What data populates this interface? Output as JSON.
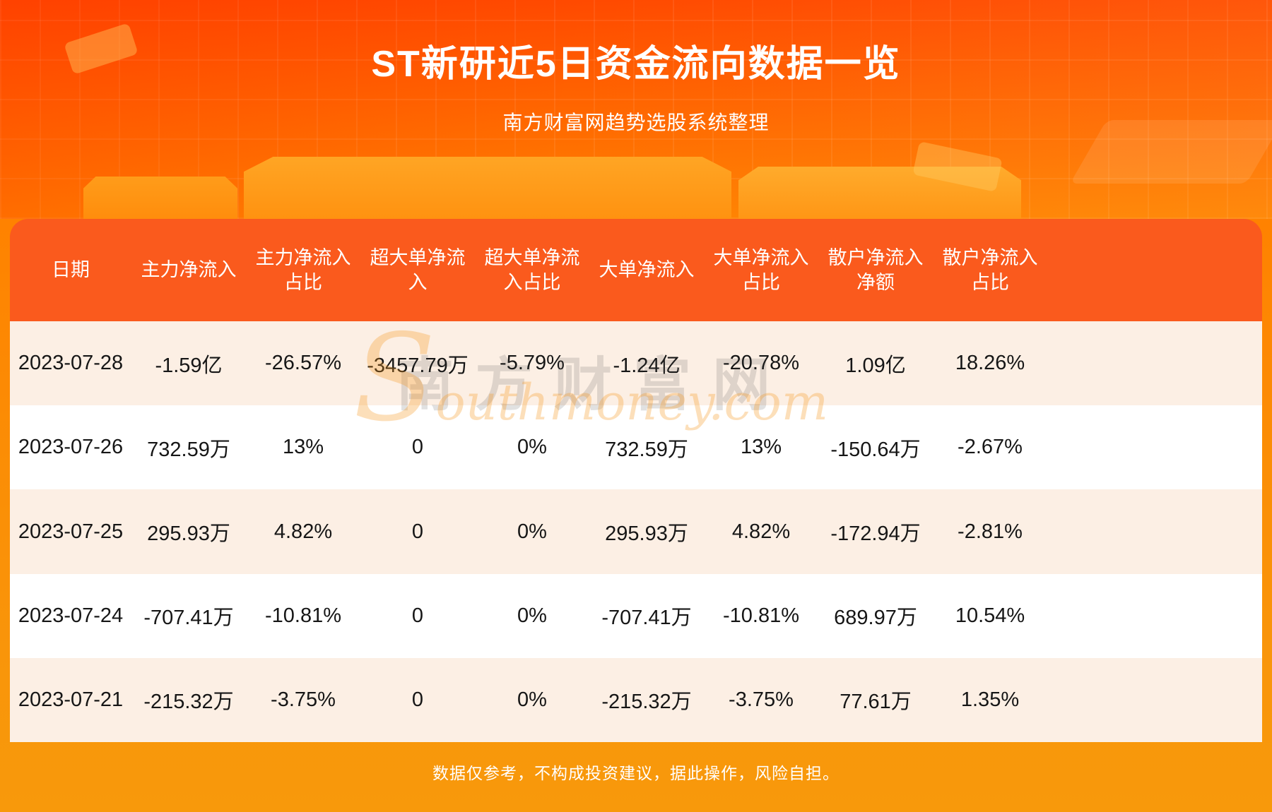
{
  "page": {
    "title": "ST新研近5日资金流向数据一览",
    "subtitle": "南方财富网趋势选股系统整理",
    "disclaimer": "数据仅参考，不构成投资建议，据此操作，风险自担。"
  },
  "watermark": {
    "cn": "南方财富网",
    "en": "Southmoney.com"
  },
  "colors": {
    "hero_top": "#ff4a00",
    "hero_mid": "#ff8200",
    "footer_bg": "#f8990b",
    "table_header_bg": "#fa5a1d",
    "row_stripe_bg": "#fcefe4",
    "row_bg": "#ffffff",
    "text_dark": "#161616"
  },
  "chart_data": {
    "type": "table",
    "title": "ST新研近5日资金流向数据一览",
    "subtitle": "南方财富网趋势选股系统整理",
    "columns": [
      "日期",
      "主力净流入",
      "主力净流入占比",
      "超大单净流入",
      "超大单净流入占比",
      "大单净流入",
      "大单净流入占比",
      "散户净流入净额",
      "散户净流入占比"
    ],
    "headers": [
      [
        "日期"
      ],
      [
        "主力净流入"
      ],
      [
        "主力净流入",
        "占比"
      ],
      [
        "超大单净流",
        "入"
      ],
      [
        "超大单净流",
        "入占比"
      ],
      [
        "大单净流入"
      ],
      [
        "大单净流入",
        "占比"
      ],
      [
        "散户净流入",
        "净额"
      ],
      [
        "散户净流入",
        "占比"
      ]
    ],
    "rows": [
      [
        "2023-07-28",
        "-1.59亿",
        "-26.57%",
        "-3457.79万",
        "-5.79%",
        "-1.24亿",
        "-20.78%",
        "1.09亿",
        "18.26%"
      ],
      [
        "2023-07-26",
        "732.59万",
        "13%",
        "0",
        "0%",
        "732.59万",
        "13%",
        "-150.64万",
        "-2.67%"
      ],
      [
        "2023-07-25",
        "295.93万",
        "4.82%",
        "0",
        "0%",
        "295.93万",
        "4.82%",
        "-172.94万",
        "-2.81%"
      ],
      [
        "2023-07-24",
        "-707.41万",
        "-10.81%",
        "0",
        "0%",
        "-707.41万",
        "-10.81%",
        "689.97万",
        "10.54%"
      ],
      [
        "2023-07-21",
        "-215.32万",
        "-3.75%",
        "0",
        "0%",
        "-215.32万",
        "-3.75%",
        "77.61万",
        "1.35%"
      ]
    ]
  }
}
